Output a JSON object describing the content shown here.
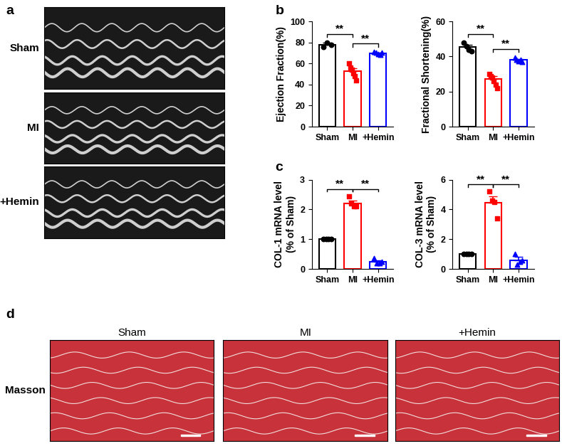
{
  "panels": {
    "a": {
      "label": "a",
      "rows": [
        "Sham",
        "MI",
        "+Hemin"
      ]
    },
    "b": {
      "label": "b"
    },
    "c": {
      "label": "c"
    },
    "d": {
      "label": "d",
      "row": "Masson",
      "columns": [
        "Sham",
        "MI",
        "+Hemin"
      ]
    }
  },
  "chart_data": [
    {
      "type": "bar",
      "y_label": "Ejection Fraction(%)",
      "categories": [
        "Sham",
        "MI",
        "+Hemin"
      ],
      "values": [
        78,
        52.5,
        69.5
      ],
      "errors": [
        1.5,
        3.0,
        0.8
      ],
      "points": [
        [
          76,
          80,
          78
        ],
        [
          60,
          56,
          54,
          51,
          48,
          44
        ],
        [
          71,
          70,
          69,
          68,
          70
        ]
      ],
      "colors": [
        "#000000",
        "#ff0000",
        "#0000ff"
      ],
      "ylim": [
        0,
        100
      ],
      "yticks": [
        0,
        20,
        40,
        60,
        80,
        100
      ],
      "comparisons": [
        {
          "pair": [
            0,
            1
          ],
          "label": "**"
        },
        {
          "pair": [
            1,
            2
          ],
          "label": "**"
        }
      ]
    },
    {
      "type": "bar",
      "y_label": "Fractional Shortening(%)",
      "categories": [
        "Sham",
        "MI",
        "+Hemin"
      ],
      "values": [
        45.5,
        27,
        38
      ],
      "errors": [
        1.2,
        1.8,
        0.6
      ],
      "points": [
        [
          48,
          46,
          44,
          43
        ],
        [
          30,
          29,
          28,
          26,
          24,
          22
        ],
        [
          39.5,
          38,
          37.5,
          38,
          37
        ]
      ],
      "colors": [
        "#000000",
        "#ff0000",
        "#0000ff"
      ],
      "ylim": [
        0,
        60
      ],
      "yticks": [
        0,
        20,
        40,
        60
      ],
      "comparisons": [
        {
          "pair": [
            0,
            1
          ],
          "label": "**"
        },
        {
          "pair": [
            1,
            2
          ],
          "label": "**"
        }
      ]
    },
    {
      "type": "bar",
      "y_label": "COL-1 mRNA level\n(% of Sham)",
      "categories": [
        "Sham",
        "MI",
        "+Hemin"
      ],
      "values": [
        1,
        2.2,
        0.25
      ],
      "errors": [
        0,
        0.1,
        0.05
      ],
      "points": [
        [
          1,
          1,
          1,
          1
        ],
        [
          2.45,
          2.2,
          2.1,
          2.1
        ],
        [
          0.35,
          0.2,
          0.2,
          0.25
        ]
      ],
      "colors": [
        "#000000",
        "#ff0000",
        "#0000ff"
      ],
      "ylim": [
        0,
        3
      ],
      "yticks": [
        0,
        1,
        2,
        3
      ],
      "comparisons": [
        {
          "pair": [
            0,
            1
          ],
          "label": "**"
        },
        {
          "pair": [
            1,
            2
          ],
          "label": "**"
        }
      ]
    },
    {
      "type": "bar",
      "y_label": "COL-3 mRNA level\n(% of Sham)",
      "categories": [
        "Sham",
        "MI",
        "+Hemin"
      ],
      "values": [
        1,
        4.45,
        0.6
      ],
      "errors": [
        0,
        0.45,
        0.2
      ],
      "points": [
        [
          1,
          1,
          1,
          1
        ],
        [
          5.2,
          4.6,
          4.5,
          3.4
        ],
        [
          1.0,
          0.3,
          0.5,
          0.6
        ]
      ],
      "colors": [
        "#000000",
        "#ff0000",
        "#0000ff"
      ],
      "ylim": [
        0,
        6
      ],
      "yticks": [
        0,
        2,
        4,
        6
      ],
      "comparisons": [
        {
          "pair": [
            0,
            1
          ],
          "label": "**"
        },
        {
          "pair": [
            1,
            2
          ],
          "label": "**"
        }
      ]
    }
  ]
}
